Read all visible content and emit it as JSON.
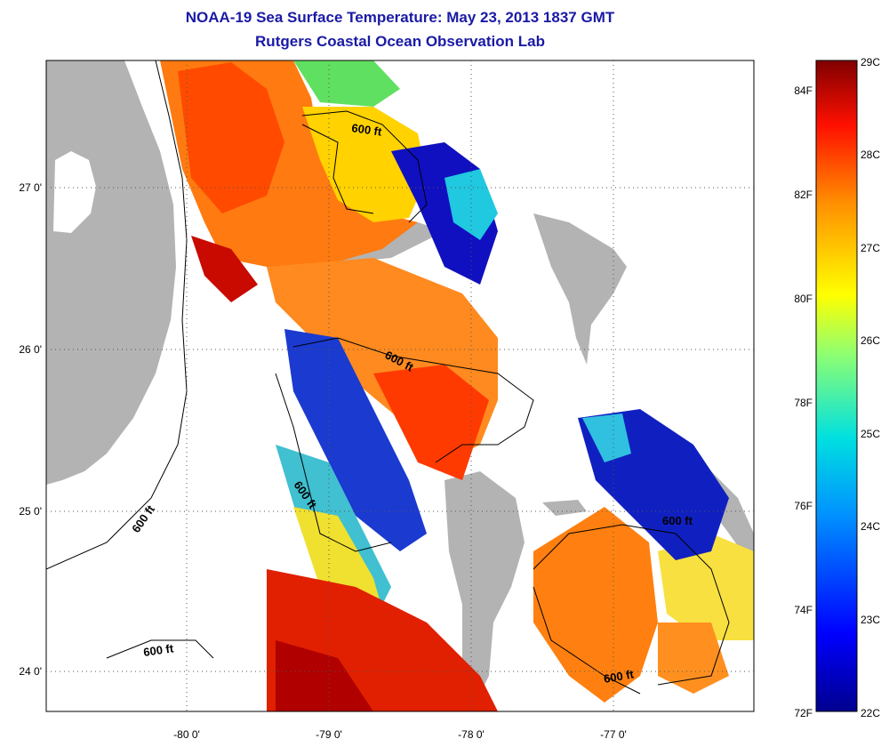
{
  "title": {
    "line1": "NOAA-19 Sea Surface Temperature:  May 23, 2013 1837 GMT",
    "line2": "Rutgers Coastal Ocean Observation Lab"
  },
  "axes": {
    "lon_ticks": [
      "-80 0'",
      "-79 0'",
      "-78 0'",
      "-77 0'"
    ],
    "lat_ticks": [
      "27 0'",
      "26 0'",
      "25 0'",
      "24 0'"
    ]
  },
  "contour_label": "600 ft",
  "colorbar": {
    "celsius": [
      "29C",
      "28C",
      "27C",
      "26C",
      "25C",
      "24C",
      "23C",
      "22C"
    ],
    "fahrenheit": [
      "84F",
      "82F",
      "80F",
      "78F",
      "76F",
      "74F",
      "72F"
    ],
    "range_c": [
      22,
      29
    ]
  },
  "colors": {
    "title": "#1a1aa6",
    "land": "#b3b3b3",
    "warm": "#cc0000",
    "hot": "#ff4400",
    "mid": "#ff9900",
    "yellow": "#ffee00",
    "cool": "#00c8c8",
    "cold": "#0000aa"
  }
}
